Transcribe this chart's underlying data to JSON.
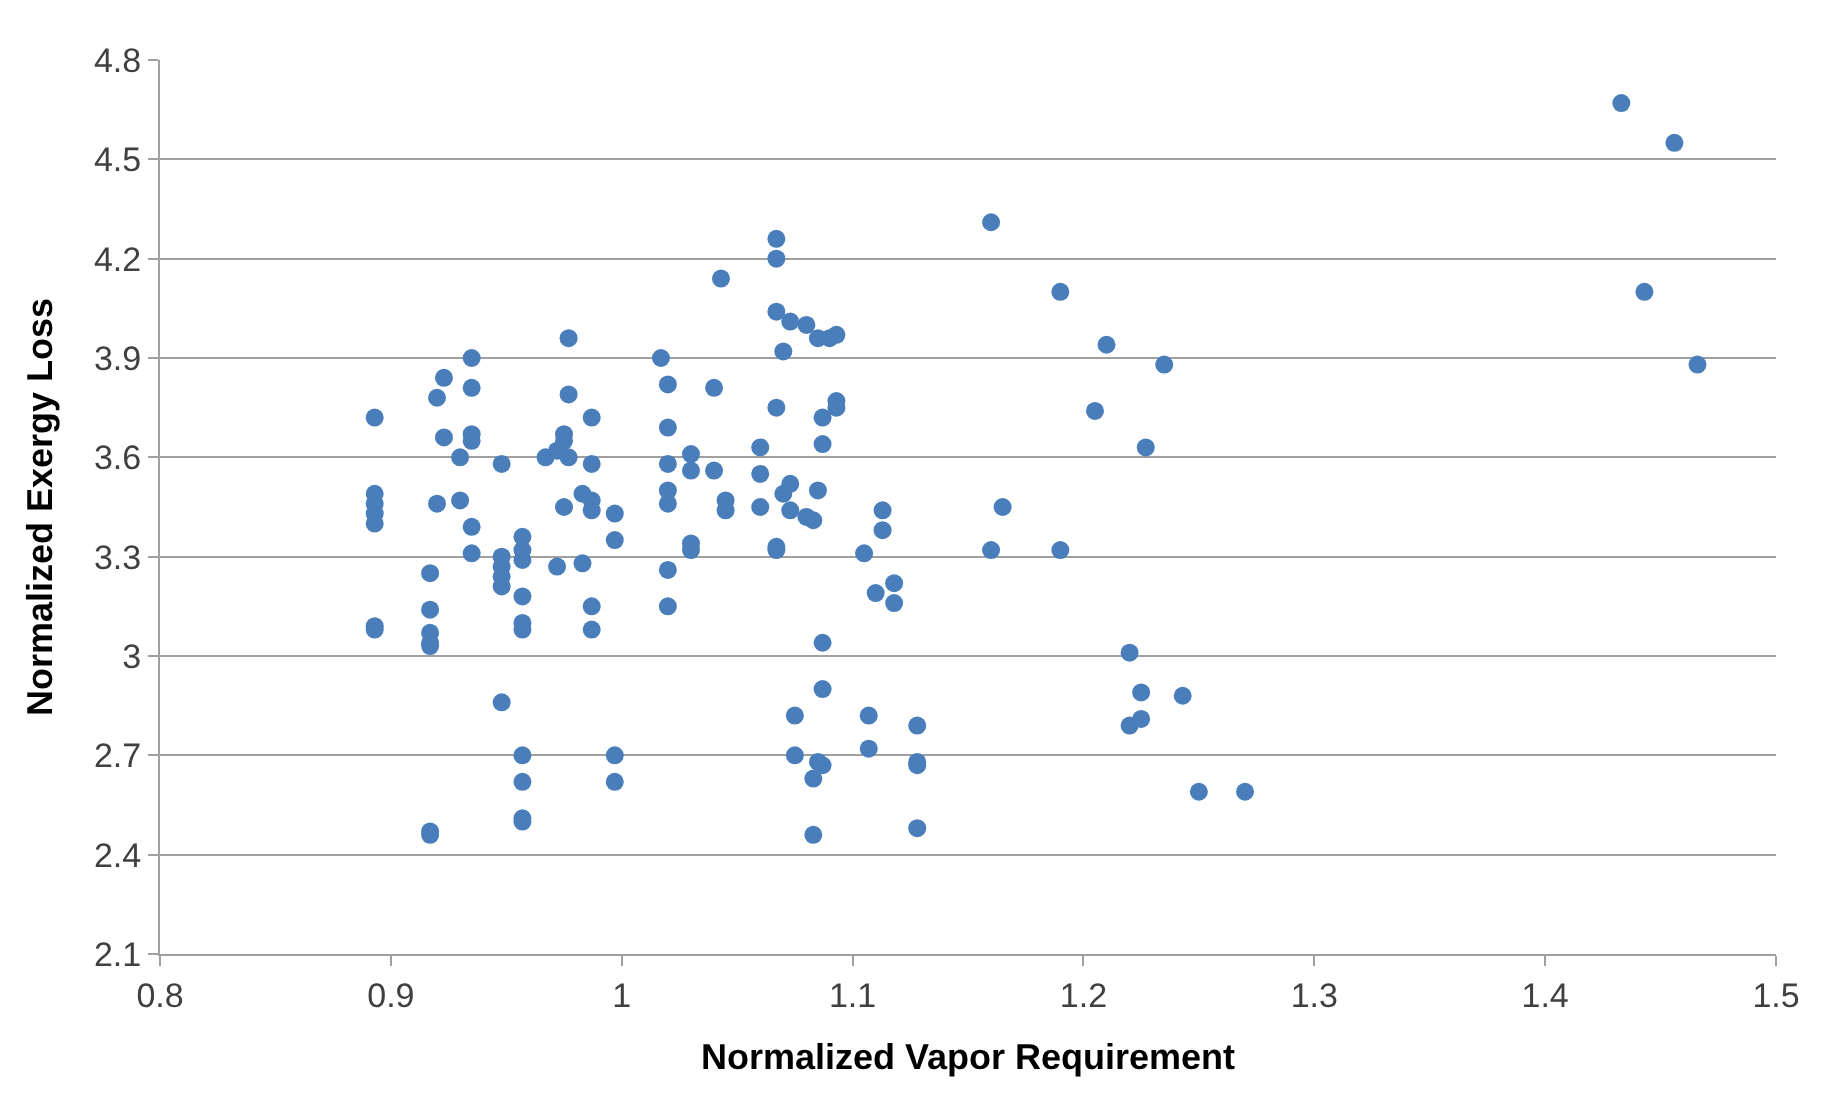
{
  "chart_data": {
    "type": "scatter",
    "xlabel": "Normalized Vapor Requirement",
    "ylabel": "Normalized Exergy Loss",
    "x": [
      0.893,
      0.893,
      0.893,
      0.893,
      0.893,
      0.893,
      0.893,
      0.917,
      0.917,
      0.917,
      0.917,
      0.917,
      0.917,
      0.917,
      0.92,
      0.92,
      0.923,
      0.923,
      0.93,
      0.93,
      0.935,
      0.935,
      0.935,
      0.935,
      0.935,
      0.935,
      0.948,
      0.948,
      0.948,
      0.948,
      0.948,
      0.948,
      0.957,
      0.957,
      0.957,
      0.957,
      0.957,
      0.957,
      0.957,
      0.957,
      0.957,
      0.957,
      0.967,
      0.972,
      0.972,
      0.975,
      0.975,
      0.975,
      0.977,
      0.977,
      0.977,
      0.983,
      0.983,
      0.987,
      0.987,
      0.987,
      0.987,
      0.987,
      0.987,
      0.997,
      0.997,
      0.997,
      0.997,
      1.017,
      1.02,
      1.02,
      1.02,
      1.02,
      1.02,
      1.02,
      1.02,
      1.03,
      1.03,
      1.03,
      1.03,
      1.04,
      1.04,
      1.043,
      1.045,
      1.045,
      1.06,
      1.06,
      1.06,
      1.067,
      1.067,
      1.067,
      1.067,
      1.067,
      1.067,
      1.07,
      1.07,
      1.073,
      1.073,
      1.073,
      1.075,
      1.075,
      1.08,
      1.08,
      1.083,
      1.083,
      1.083,
      1.085,
      1.085,
      1.085,
      1.087,
      1.087,
      1.087,
      1.087,
      1.087,
      1.09,
      1.093,
      1.093,
      1.093,
      1.105,
      1.107,
      1.107,
      1.11,
      1.113,
      1.113,
      1.118,
      1.118,
      1.128,
      1.128,
      1.128,
      1.128,
      1.16,
      1.16,
      1.165,
      1.19,
      1.19,
      1.205,
      1.21,
      1.22,
      1.22,
      1.225,
      1.225,
      1.227,
      1.235,
      1.243,
      1.25,
      1.27,
      1.433,
      1.456,
      1.443,
      1.466
    ],
    "values": [
      3.72,
      3.49,
      3.46,
      3.43,
      3.4,
      3.09,
      3.08,
      3.25,
      3.14,
      3.07,
      3.04,
      3.03,
      2.47,
      2.46,
      3.78,
      3.46,
      3.84,
      3.66,
      3.6,
      3.47,
      3.9,
      3.81,
      3.67,
      3.65,
      3.39,
      3.31,
      3.58,
      3.3,
      3.27,
      3.24,
      3.21,
      2.86,
      3.36,
      3.32,
      3.29,
      3.18,
      3.1,
      3.08,
      2.7,
      2.62,
      2.51,
      2.5,
      3.6,
      3.62,
      3.27,
      3.67,
      3.65,
      3.45,
      3.96,
      3.79,
      3.6,
      3.49,
      3.28,
      3.72,
      3.58,
      3.47,
      3.44,
      3.15,
      3.08,
      3.43,
      3.35,
      2.7,
      2.62,
      3.9,
      3.82,
      3.69,
      3.58,
      3.5,
      3.46,
      3.26,
      3.15,
      3.61,
      3.56,
      3.34,
      3.32,
      3.81,
      3.56,
      4.14,
      3.47,
      3.44,
      3.63,
      3.55,
      3.45,
      4.26,
      4.2,
      4.04,
      3.75,
      3.33,
      3.32,
      3.92,
      3.49,
      4.01,
      3.52,
      3.44,
      2.82,
      2.7,
      4.0,
      3.42,
      3.41,
      2.63,
      2.46,
      3.96,
      3.5,
      2.68,
      3.72,
      3.64,
      3.04,
      2.9,
      2.67,
      3.96,
      3.97,
      3.77,
      3.75,
      3.31,
      2.82,
      2.72,
      3.19,
      3.44,
      3.38,
      3.22,
      3.16,
      2.79,
      2.68,
      2.67,
      2.48,
      4.31,
      3.32,
      3.45,
      4.1,
      3.32,
      3.74,
      3.94,
      3.01,
      2.79,
      2.89,
      2.81,
      3.63,
      3.88,
      2.88,
      2.59,
      2.59,
      4.67,
      4.55,
      4.1,
      3.88
    ],
    "color": "#4a7ebb",
    "marker": "circle",
    "xlim": [
      0.8,
      1.5
    ],
    "xticks": [
      0.8,
      0.9,
      1,
      1.1,
      1.2,
      1.3,
      1.4,
      1.5
    ],
    "ylim": [
      2.1,
      4.8
    ],
    "yticks": [
      2.1,
      2.4,
      2.7,
      3,
      3.3,
      3.6,
      3.9,
      4.2,
      4.5,
      4.8
    ],
    "grid": "y"
  }
}
